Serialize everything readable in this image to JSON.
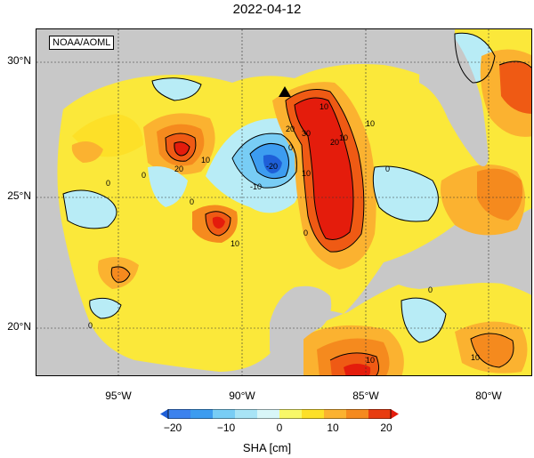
{
  "title": "2022-04-12",
  "credit": "NOAA/AOML",
  "colors": {
    "land": "#c8c8c8",
    "scale": [
      "#1e5fd8",
      "#3c9cf0",
      "#78cdf5",
      "#b8ecf6",
      "#f8f868",
      "#fde028",
      "#fbb230",
      "#f58a1e",
      "#ef5a14",
      "#e41c0c"
    ]
  },
  "map": {
    "lat_labels": [
      "30°N",
      "25°N",
      "20°N"
    ],
    "lon_labels": [
      "95°W",
      "90°W",
      "85°W",
      "80°W"
    ],
    "contour_labels": [
      "0",
      "0",
      "0",
      "0",
      "0",
      "0",
      "0",
      "0",
      "10",
      "10",
      "10",
      "10",
      "10",
      "10",
      "10",
      "10",
      "20",
      "20",
      "20",
      "30",
      "-20",
      "-10"
    ],
    "marker": "triangle"
  },
  "colorbar": {
    "ticks": [
      "−20",
      "−10",
      "0",
      "10",
      "20"
    ],
    "label": "SHA [cm]"
  }
}
